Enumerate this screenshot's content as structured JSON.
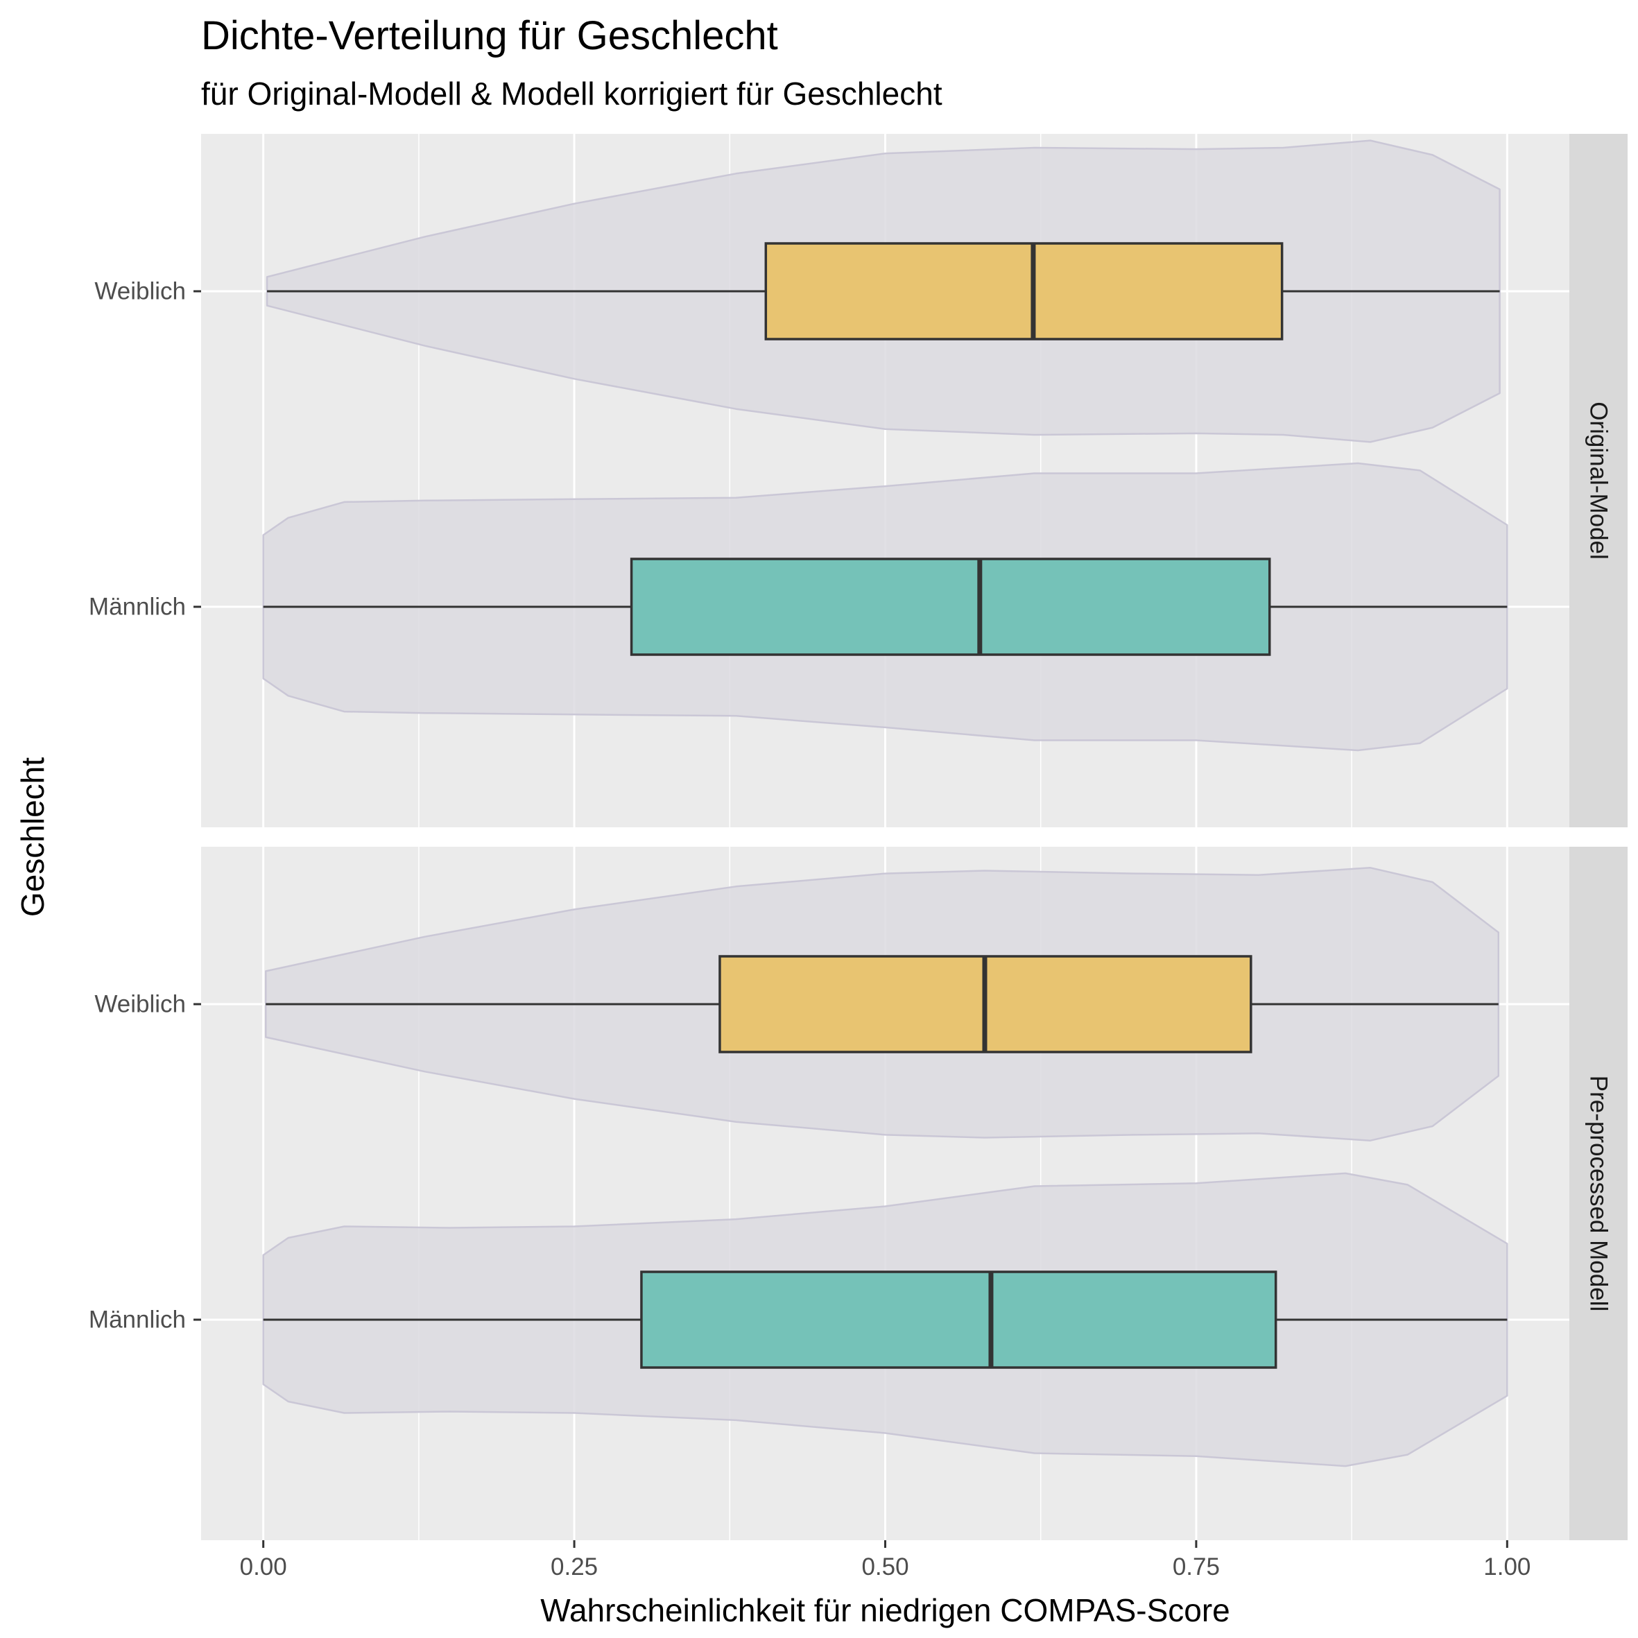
{
  "chart_data": {
    "type": "boxplot-violin",
    "title": "Dichte-Verteilung für Geschlecht",
    "subtitle": "für Original-Modell & Modell korrigiert für Geschlecht",
    "xlabel": "Wahrscheinlichkeit für niedrigen COMPAS-Score",
    "ylabel": "Geschlecht",
    "xlim": [
      -0.05,
      1.05
    ],
    "x_ticks": [
      0,
      0.25,
      0.5,
      0.75,
      1
    ],
    "x_tick_labels": [
      "0.00",
      "0.25",
      "0.50",
      "0.75",
      "1.00"
    ],
    "categories": [
      "Weiblich",
      "Männlich"
    ],
    "colors": {
      "Weiblich": "#e8c26a",
      "Männlich": "#6fc0b5",
      "violin": "#dcdbe1",
      "violin_edge": "#cac7d6",
      "panel": "#ebebeb",
      "strip": "#d9d9d9"
    },
    "grid": true,
    "facets": [
      {
        "label": "Original-Model",
        "groups": [
          {
            "name": "Weiblich",
            "min": 0.003,
            "q1": 0.404,
            "median": 0.619,
            "q3": 0.819,
            "max": 0.994,
            "violin": {
              "x": [
                0.003,
                0.13,
                0.25,
                0.38,
                0.5,
                0.62,
                0.75,
                0.82,
                0.89,
                0.94,
                0.994
              ],
              "half_width": [
                0.1,
                0.38,
                0.61,
                0.82,
                0.96,
                1.0,
                0.99,
                1.0,
                1.05,
                0.95,
                0.71
              ]
            }
          },
          {
            "name": "Männlich",
            "min": 0.0,
            "q1": 0.296,
            "median": 0.576,
            "q3": 0.809,
            "max": 1.0,
            "violin": {
              "x": [
                0.0,
                0.02,
                0.065,
                0.13,
                0.25,
                0.38,
                0.5,
                0.62,
                0.75,
                0.88,
                0.93,
                1.0
              ],
              "half_width": [
                0.5,
                0.62,
                0.73,
                0.74,
                0.75,
                0.76,
                0.84,
                0.93,
                0.93,
                1.0,
                0.95,
                0.57
              ]
            }
          }
        ]
      },
      {
        "label": "Pre-processed Modell",
        "groups": [
          {
            "name": "Weiblich",
            "min": 0.002,
            "q1": 0.367,
            "median": 0.58,
            "q3": 0.794,
            "max": 0.993,
            "violin": {
              "x": [
                0.002,
                0.13,
                0.25,
                0.38,
                0.5,
                0.58,
                0.7,
                0.8,
                0.89,
                0.94,
                0.993
              ],
              "half_width": [
                0.23,
                0.47,
                0.66,
                0.82,
                0.91,
                0.93,
                0.91,
                0.9,
                0.95,
                0.85,
                0.5
              ]
            }
          },
          {
            "name": "Männlich",
            "min": 0.0,
            "q1": 0.304,
            "median": 0.585,
            "q3": 0.814,
            "max": 1.0,
            "violin": {
              "x": [
                0.0,
                0.02,
                0.065,
                0.15,
                0.25,
                0.38,
                0.5,
                0.62,
                0.75,
                0.87,
                0.92,
                1.0
              ],
              "half_width": [
                0.45,
                0.57,
                0.65,
                0.64,
                0.65,
                0.7,
                0.79,
                0.93,
                0.95,
                1.02,
                0.94,
                0.53
              ]
            }
          }
        ]
      }
    ]
  }
}
